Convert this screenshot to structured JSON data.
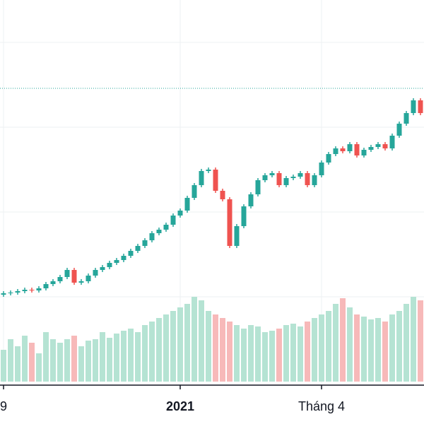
{
  "chart_data": {
    "type": "candlestick",
    "categories": [
      "9",
      null,
      null,
      null,
      null,
      null,
      null,
      null,
      null,
      null,
      null,
      null,
      null,
      null,
      null,
      null,
      null,
      null,
      null,
      null,
      null,
      null,
      null,
      null,
      null,
      "2021",
      null,
      null,
      null,
      null,
      null,
      null,
      null,
      null,
      null,
      null,
      null,
      null,
      null,
      null,
      null,
      null,
      null,
      null,
      null,
      "Tháng 4",
      null,
      null,
      null,
      null,
      null,
      null,
      null,
      null,
      null,
      null,
      null,
      null,
      null,
      null
    ],
    "open": [
      143,
      145,
      146,
      148,
      150,
      149,
      152,
      158,
      162,
      168,
      178,
      160,
      162,
      170,
      178,
      182,
      188,
      192,
      198,
      205,
      212,
      220,
      230,
      235,
      242,
      255,
      262,
      280,
      298,
      318,
      320,
      290,
      278,
      212,
      240,
      268,
      285,
      305,
      312,
      315,
      298,
      308,
      310,
      315,
      298,
      312,
      330,
      342,
      350,
      346,
      356,
      340,
      348,
      352,
      356,
      350,
      368,
      385,
      400,
      418
    ],
    "high": [
      148,
      149,
      151,
      153,
      153,
      155,
      161,
      165,
      171,
      181,
      181,
      165,
      173,
      181,
      185,
      191,
      195,
      201,
      208,
      215,
      223,
      233,
      238,
      245,
      258,
      265,
      283,
      301,
      321,
      323,
      323,
      293,
      281,
      243,
      271,
      288,
      308,
      315,
      318,
      318,
      311,
      313,
      318,
      318,
      315,
      333,
      345,
      353,
      353,
      359,
      359,
      351,
      355,
      359,
      359,
      371,
      388,
      403,
      421,
      421
    ],
    "low": [
      140,
      142,
      143,
      145,
      146,
      146,
      149,
      155,
      159,
      165,
      157,
      157,
      159,
      167,
      175,
      179,
      185,
      189,
      195,
      202,
      209,
      217,
      227,
      232,
      239,
      252,
      259,
      277,
      295,
      315,
      287,
      275,
      209,
      209,
      237,
      265,
      282,
      302,
      309,
      295,
      295,
      305,
      307,
      295,
      295,
      309,
      327,
      339,
      343,
      343,
      337,
      337,
      345,
      349,
      347,
      347,
      365,
      382,
      397,
      397
    ],
    "close": [
      145,
      146,
      148,
      150,
      149,
      152,
      158,
      162,
      168,
      178,
      160,
      162,
      170,
      178,
      182,
      188,
      192,
      198,
      205,
      212,
      220,
      230,
      235,
      242,
      255,
      262,
      280,
      298,
      318,
      320,
      290,
      278,
      212,
      240,
      268,
      285,
      305,
      312,
      315,
      298,
      308,
      310,
      315,
      298,
      312,
      330,
      342,
      350,
      346,
      356,
      340,
      348,
      352,
      356,
      350,
      368,
      385,
      400,
      418,
      400
    ],
    "volume": [
      45,
      60,
      50,
      65,
      55,
      40,
      70,
      60,
      55,
      60,
      65,
      50,
      58,
      60,
      70,
      62,
      68,
      72,
      75,
      70,
      80,
      85,
      90,
      95,
      100,
      105,
      110,
      120,
      115,
      100,
      95,
      90,
      85,
      80,
      75,
      80,
      78,
      70,
      72,
      75,
      80,
      82,
      78,
      85,
      90,
      95,
      100,
      110,
      118,
      105,
      95,
      92,
      88,
      90,
      85,
      95,
      100,
      110,
      120,
      115
    ],
    "ylim": [
      20,
      560
    ],
    "volume_lim": [
      0,
      540
    ],
    "grid_lines": [
      500,
      380,
      260,
      140
    ],
    "price_line": 435,
    "up_color": "#26a69a",
    "down_color": "#ef5350",
    "volume_up_color": "#b5e3d3",
    "volume_down_color": "#f7b9b9"
  }
}
